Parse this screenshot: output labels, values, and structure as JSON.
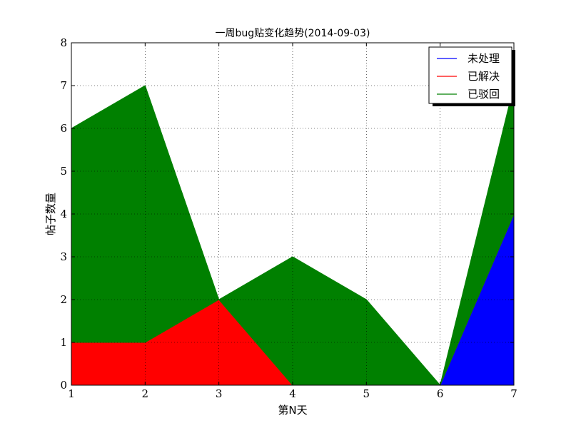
{
  "chart_data": {
    "type": "area",
    "title": "一周bug贴变化趋势(2014-09-03)",
    "xlabel": "第N天",
    "ylabel": "帖子数量",
    "x": [
      1,
      2,
      3,
      4,
      5,
      6,
      7
    ],
    "xlim": [
      1,
      7
    ],
    "ylim": [
      0,
      8
    ],
    "xticks": [
      1,
      2,
      3,
      4,
      5,
      6,
      7
    ],
    "yticks": [
      0,
      1,
      2,
      3,
      4,
      5,
      6,
      7,
      8
    ],
    "stacked": true,
    "grid": true,
    "legend_position": "top-right",
    "series": [
      {
        "name": "未处理",
        "color": "#0000ff",
        "values": [
          0,
          0,
          0,
          0,
          0,
          0,
          4
        ]
      },
      {
        "name": "已解决",
        "color": "#ff0000",
        "values": [
          1,
          1,
          2,
          0,
          0,
          0,
          0
        ]
      },
      {
        "name": "已驳回",
        "color": "#008000",
        "values": [
          5,
          6,
          0,
          3,
          2,
          0,
          3
        ]
      }
    ]
  }
}
